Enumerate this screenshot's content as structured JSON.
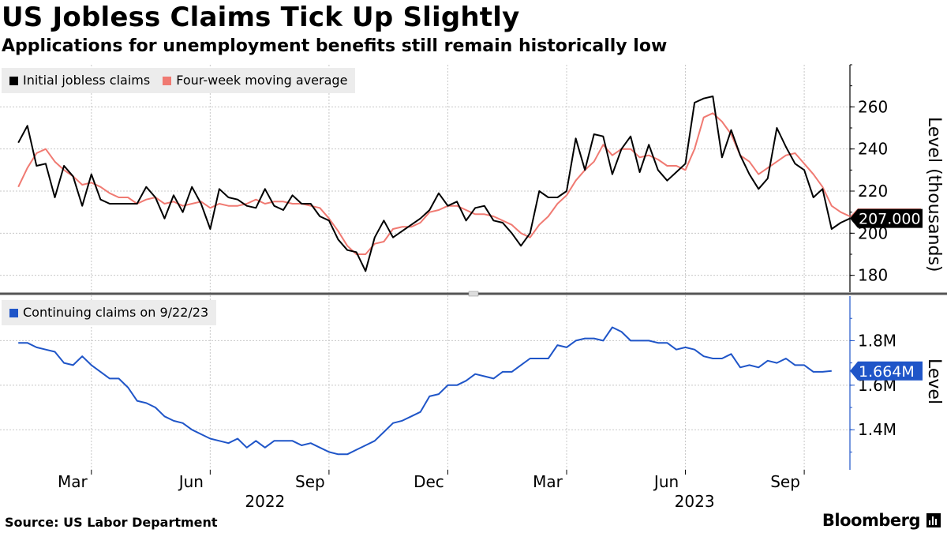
{
  "title": "US Jobless Claims Tick Up Slightly",
  "subtitle": "Applications for unemployment benefits still remain historically low",
  "source": "Source: US Labor Department",
  "brand": "Bloomberg",
  "colors": {
    "initial": "#000000",
    "moving_average": "#f07a72",
    "continuing": "#1f55c8",
    "grid": "#c8c8c8",
    "legend_bg": "#ececec"
  },
  "x_axis": {
    "month_ticks": [
      {
        "label": "Mar",
        "week": 8
      },
      {
        "label": "Jun",
        "week": 21
      },
      {
        "label": "Sep",
        "week": 34
      },
      {
        "label": "Dec",
        "week": 47
      },
      {
        "label": "Mar",
        "week": 60
      },
      {
        "label": "Jun",
        "week": 73
      },
      {
        "label": "Sep",
        "week": 86
      }
    ],
    "years": [
      {
        "label": "2022",
        "week": 27
      },
      {
        "label": "2023",
        "week": 74
      }
    ],
    "week_range": [
      -2,
      91
    ]
  },
  "chart_data": [
    {
      "type": "line",
      "title": "Initial jobless claims vs four-week moving average",
      "ylabel": "Level (thousands)",
      "ylim": [
        172,
        280
      ],
      "yticks": [
        180,
        200,
        220,
        240,
        260
      ],
      "last_value_label": "207.000",
      "series": [
        {
          "name": "Initial jobless claims",
          "start_week": 0,
          "values": [
            243,
            251,
            232,
            233,
            217,
            232,
            227,
            213,
            228,
            216,
            214,
            214,
            214,
            214,
            222,
            217,
            207,
            218,
            210,
            222,
            214,
            202,
            221,
            217,
            216,
            213,
            212,
            221,
            213,
            211,
            218,
            214,
            214,
            208,
            206,
            197,
            192,
            191,
            182,
            198,
            206,
            198,
            201,
            204,
            207,
            211,
            219,
            213,
            215,
            206,
            212,
            213,
            206,
            205,
            200,
            194,
            200,
            220,
            217,
            217,
            220,
            245,
            230,
            247,
            246,
            228,
            240,
            246,
            229,
            242,
            230,
            225,
            229,
            233,
            262,
            264,
            265,
            236,
            249,
            237,
            228,
            221,
            226,
            250,
            241,
            233,
            230,
            217,
            221,
            202,
            205,
            207
          ]
        },
        {
          "name": "Four-week moving average",
          "start_week": 0,
          "values": [
            222,
            231,
            238,
            240,
            234,
            230,
            227,
            223,
            224,
            222,
            219,
            217,
            217,
            214,
            216,
            217,
            214,
            215,
            213,
            214,
            215,
            212,
            214,
            213,
            213,
            214,
            216,
            214,
            215,
            215,
            214,
            214,
            213,
            212,
            207,
            201,
            194,
            190,
            190,
            195,
            196,
            202,
            203,
            203,
            205,
            210,
            211,
            213,
            213,
            211,
            209,
            209,
            208,
            206,
            204,
            200,
            198,
            204,
            208,
            214,
            218,
            225,
            230,
            234,
            242,
            237,
            240,
            240,
            236,
            237,
            235,
            232,
            232,
            230,
            240,
            255,
            257,
            253,
            247,
            237,
            234,
            228,
            231,
            234,
            237,
            238,
            233,
            228,
            222,
            213,
            210,
            208
          ]
        }
      ]
    },
    {
      "type": "line",
      "title": "Continuing claims",
      "ylabel": "Level",
      "ylim": [
        1.22,
        2.0
      ],
      "yticks": [
        1.4,
        1.6,
        1.8
      ],
      "ytick_labels": [
        "1.4M",
        "1.6M",
        "1.8M"
      ],
      "last_value_label": "1.664M",
      "series": [
        {
          "name": "Continuing claims on 9/22/23",
          "start_week": 0,
          "values": [
            1.79,
            1.79,
            1.77,
            1.76,
            1.75,
            1.7,
            1.69,
            1.73,
            1.69,
            1.66,
            1.63,
            1.63,
            1.59,
            1.53,
            1.52,
            1.5,
            1.46,
            1.44,
            1.43,
            1.4,
            1.38,
            1.36,
            1.35,
            1.34,
            1.36,
            1.32,
            1.35,
            1.32,
            1.35,
            1.35,
            1.35,
            1.33,
            1.34,
            1.32,
            1.3,
            1.29,
            1.29,
            1.31,
            1.33,
            1.35,
            1.39,
            1.43,
            1.44,
            1.46,
            1.48,
            1.55,
            1.56,
            1.6,
            1.6,
            1.62,
            1.65,
            1.64,
            1.63,
            1.66,
            1.66,
            1.69,
            1.72,
            1.72,
            1.72,
            1.78,
            1.77,
            1.8,
            1.81,
            1.81,
            1.8,
            1.86,
            1.84,
            1.8,
            1.8,
            1.8,
            1.79,
            1.79,
            1.76,
            1.77,
            1.76,
            1.73,
            1.72,
            1.72,
            1.74,
            1.68,
            1.69,
            1.68,
            1.71,
            1.7,
            1.72,
            1.69,
            1.69,
            1.66,
            1.66,
            1.664
          ]
        }
      ]
    }
  ]
}
